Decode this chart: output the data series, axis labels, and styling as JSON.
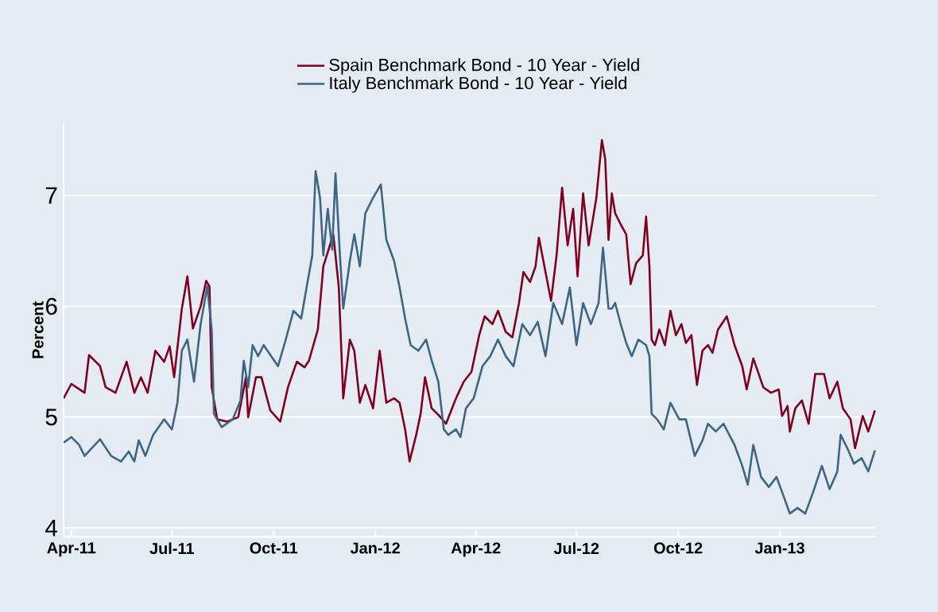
{
  "chart_data": {
    "type": "line",
    "ylabel": "Percent",
    "legend": "top",
    "grid": "y",
    "marker": "none",
    "line_style": "solid",
    "xlim": [
      "2011-03-25",
      "2013-03-29"
    ],
    "ylim": [
      3.92,
      7.65
    ],
    "yticks": [
      4,
      5,
      6,
      7
    ],
    "xticks": [
      {
        "value": "2011-04-01",
        "label": "Apr-11"
      },
      {
        "value": "2011-07-01",
        "label": "Jul-11"
      },
      {
        "value": "2011-10-01",
        "label": "Oct-11"
      },
      {
        "value": "2012-01-01",
        "label": "Jan-12"
      },
      {
        "value": "2012-04-01",
        "label": "Apr-12"
      },
      {
        "value": "2012-07-01",
        "label": "Jul-12"
      },
      {
        "value": "2012-10-01",
        "label": "Oct-12"
      },
      {
        "value": "2013-01-01",
        "label": "Jan-13"
      }
    ],
    "series": [
      {
        "name": "Spain Benchmark Bond - 10 Year - Yield",
        "color": "#7f0020",
        "x": [
          "2011-03-25",
          "2011-04-01",
          "2011-04-13",
          "2011-04-17",
          "2011-04-27",
          "2011-05-02",
          "2011-05-11",
          "2011-05-21",
          "2011-05-28",
          "2011-06-03",
          "2011-06-09",
          "2011-06-16",
          "2011-06-24",
          "2011-06-29",
          "2011-07-03",
          "2011-07-10",
          "2011-07-15",
          "2011-07-20",
          "2011-07-27",
          "2011-08-01",
          "2011-08-04",
          "2011-08-06",
          "2011-08-11",
          "2011-08-20",
          "2011-08-30",
          "2011-09-06",
          "2011-09-08",
          "2011-09-15",
          "2011-09-20",
          "2011-09-28",
          "2011-10-07",
          "2011-10-14",
          "2011-10-22",
          "2011-10-29",
          "2011-11-02",
          "2011-11-10",
          "2011-11-15",
          "2011-11-24",
          "2011-11-29",
          "2011-12-03",
          "2011-12-09",
          "2011-12-13",
          "2011-12-18",
          "2011-12-23",
          "2011-12-30",
          "2012-01-05",
          "2012-01-11",
          "2012-01-18",
          "2012-01-23",
          "2012-01-28",
          "2012-02-01",
          "2012-02-07",
          "2012-02-11",
          "2012-02-15",
          "2012-02-21",
          "2012-02-28",
          "2012-03-05",
          "2012-03-14",
          "2012-03-21",
          "2012-03-28",
          "2012-04-04",
          "2012-04-09",
          "2012-04-16",
          "2012-04-21",
          "2012-04-28",
          "2012-05-04",
          "2012-05-10",
          "2012-05-14",
          "2012-05-20",
          "2012-05-25",
          "2012-05-28",
          "2012-06-03",
          "2012-06-08",
          "2012-06-13",
          "2012-06-18",
          "2012-06-23",
          "2012-06-28",
          "2012-07-02",
          "2012-07-07",
          "2012-07-12",
          "2012-07-19",
          "2012-07-24",
          "2012-07-27",
          "2012-07-30",
          "2012-08-02",
          "2012-08-05",
          "2012-08-10",
          "2012-08-15",
          "2012-08-19",
          "2012-08-24",
          "2012-08-30",
          "2012-09-02",
          "2012-09-05",
          "2012-09-07",
          "2012-09-10",
          "2012-09-14",
          "2012-09-19",
          "2012-09-24",
          "2012-09-29",
          "2012-10-04",
          "2012-10-08",
          "2012-10-13",
          "2012-10-18",
          "2012-10-23",
          "2012-10-28",
          "2012-11-01",
          "2012-11-06",
          "2012-11-14",
          "2012-11-21",
          "2012-11-28",
          "2012-12-02",
          "2012-12-08",
          "2012-12-17",
          "2012-12-24",
          "2012-12-31",
          "2013-01-03",
          "2013-01-08",
          "2013-01-10",
          "2013-01-15",
          "2013-01-21",
          "2013-01-27",
          "2013-02-02",
          "2013-02-10",
          "2013-02-15",
          "2013-02-22",
          "2013-02-27",
          "2013-03-06",
          "2013-03-10",
          "2013-03-17",
          "2013-03-22",
          "2013-03-28"
        ],
        "values": [
          5.17,
          5.3,
          5.22,
          5.56,
          5.46,
          5.27,
          5.22,
          5.5,
          5.22,
          5.36,
          5.22,
          5.6,
          5.5,
          5.64,
          5.36,
          5.98,
          6.27,
          5.8,
          6.0,
          6.23,
          6.18,
          5.27,
          4.98,
          4.96,
          5.0,
          5.36,
          5.0,
          5.36,
          5.36,
          5.06,
          4.96,
          5.27,
          5.5,
          5.45,
          5.51,
          5.79,
          6.36,
          6.65,
          6.17,
          5.17,
          5.7,
          5.6,
          5.13,
          5.29,
          5.08,
          5.6,
          5.13,
          5.17,
          5.13,
          4.89,
          4.6,
          4.84,
          5.03,
          5.36,
          5.08,
          5.01,
          4.94,
          5.17,
          5.32,
          5.41,
          5.74,
          5.91,
          5.84,
          5.96,
          5.77,
          5.72,
          6.03,
          6.31,
          6.22,
          6.36,
          6.62,
          6.31,
          6.05,
          6.46,
          7.07,
          6.55,
          6.88,
          6.27,
          7.02,
          6.55,
          6.98,
          7.5,
          7.33,
          6.6,
          7.02,
          6.84,
          6.74,
          6.65,
          6.2,
          6.39,
          6.46,
          6.81,
          6.36,
          5.7,
          5.65,
          5.79,
          5.65,
          5.96,
          5.74,
          5.84,
          5.67,
          5.74,
          5.29,
          5.6,
          5.65,
          5.58,
          5.79,
          5.91,
          5.65,
          5.46,
          5.25,
          5.53,
          5.27,
          5.22,
          5.25,
          5.01,
          5.1,
          4.87,
          5.08,
          5.15,
          4.94,
          5.39,
          5.39,
          5.17,
          5.32,
          5.08,
          4.98,
          4.72,
          5.01,
          4.87,
          5.06
        ]
      },
      {
        "name": "Italy Benchmark Bond - 10 Year - Yield",
        "color": "#3d6685",
        "x": [
          "2011-03-25",
          "2011-04-01",
          "2011-04-08",
          "2011-04-13",
          "2011-04-27",
          "2011-05-07",
          "2011-05-16",
          "2011-05-23",
          "2011-05-28",
          "2011-06-01",
          "2011-06-07",
          "2011-06-14",
          "2011-06-24",
          "2011-07-01",
          "2011-07-06",
          "2011-07-10",
          "2011-07-15",
          "2011-07-21",
          "2011-07-27",
          "2011-08-02",
          "2011-08-06",
          "2011-08-08",
          "2011-08-15",
          "2011-08-25",
          "2011-09-01",
          "2011-09-04",
          "2011-09-08",
          "2011-09-12",
          "2011-09-17",
          "2011-09-22",
          "2011-10-05",
          "2011-10-12",
          "2011-10-19",
          "2011-10-26",
          "2011-10-31",
          "2011-11-05",
          "2011-11-08",
          "2011-11-12",
          "2011-11-15",
          "2011-11-19",
          "2011-11-23",
          "2011-11-26",
          "2011-11-30",
          "2011-12-03",
          "2011-12-09",
          "2011-12-13",
          "2011-12-18",
          "2011-12-23",
          "2011-12-30",
          "2012-01-06",
          "2012-01-11",
          "2012-01-18",
          "2012-01-23",
          "2012-01-28",
          "2012-02-02",
          "2012-02-09",
          "2012-02-16",
          "2012-02-21",
          "2012-02-27",
          "2012-03-03",
          "2012-03-07",
          "2012-03-14",
          "2012-03-18",
          "2012-03-23",
          "2012-03-30",
          "2012-04-07",
          "2012-04-14",
          "2012-04-21",
          "2012-04-28",
          "2012-05-05",
          "2012-05-13",
          "2012-05-20",
          "2012-05-27",
          "2012-06-03",
          "2012-06-10",
          "2012-06-18",
          "2012-06-25",
          "2012-07-01",
          "2012-07-07",
          "2012-07-14",
          "2012-07-21",
          "2012-07-25",
          "2012-07-30",
          "2012-08-02",
          "2012-08-05",
          "2012-08-10",
          "2012-08-15",
          "2012-08-20",
          "2012-08-26",
          "2012-09-02",
          "2012-09-05",
          "2012-09-07",
          "2012-09-12",
          "2012-09-18",
          "2012-09-24",
          "2012-10-02",
          "2012-10-08",
          "2012-10-16",
          "2012-10-23",
          "2012-10-28",
          "2012-11-04",
          "2012-11-11",
          "2012-11-21",
          "2012-11-28",
          "2012-12-03",
          "2012-12-08",
          "2012-12-15",
          "2012-12-22",
          "2012-12-29",
          "2013-01-05",
          "2013-01-10",
          "2013-01-17",
          "2013-01-24",
          "2013-01-31",
          "2013-02-08",
          "2013-02-15",
          "2013-02-22",
          "2013-02-25",
          "2013-03-04",
          "2013-03-09",
          "2013-03-16",
          "2013-03-22",
          "2013-03-28"
        ],
        "values": [
          4.77,
          4.82,
          4.75,
          4.65,
          4.8,
          4.65,
          4.6,
          4.69,
          4.6,
          4.79,
          4.65,
          4.84,
          4.98,
          4.89,
          5.13,
          5.6,
          5.7,
          5.32,
          5.84,
          6.18,
          5.79,
          5.03,
          4.91,
          4.98,
          5.15,
          5.51,
          5.27,
          5.65,
          5.55,
          5.65,
          5.46,
          5.7,
          5.96,
          5.89,
          6.18,
          6.46,
          7.22,
          6.98,
          6.46,
          6.88,
          6.51,
          7.2,
          6.46,
          5.98,
          6.41,
          6.65,
          6.36,
          6.84,
          6.98,
          7.1,
          6.6,
          6.41,
          6.17,
          5.89,
          5.65,
          5.6,
          5.7,
          5.51,
          5.32,
          4.89,
          4.84,
          4.89,
          4.82,
          5.08,
          5.17,
          5.46,
          5.55,
          5.7,
          5.55,
          5.46,
          5.84,
          5.74,
          5.86,
          5.55,
          6.03,
          5.84,
          6.17,
          5.65,
          6.03,
          5.84,
          6.03,
          6.53,
          5.98,
          5.98,
          6.03,
          5.84,
          5.67,
          5.55,
          5.7,
          5.65,
          5.55,
          5.03,
          4.98,
          4.89,
          5.13,
          4.98,
          4.98,
          4.65,
          4.79,
          4.94,
          4.87,
          4.94,
          4.75,
          4.56,
          4.39,
          4.75,
          4.46,
          4.37,
          4.46,
          4.27,
          4.13,
          4.18,
          4.13,
          4.32,
          4.56,
          4.35,
          4.51,
          4.84,
          4.7,
          4.58,
          4.63,
          4.51,
          4.7
        ]
      }
    ]
  }
}
